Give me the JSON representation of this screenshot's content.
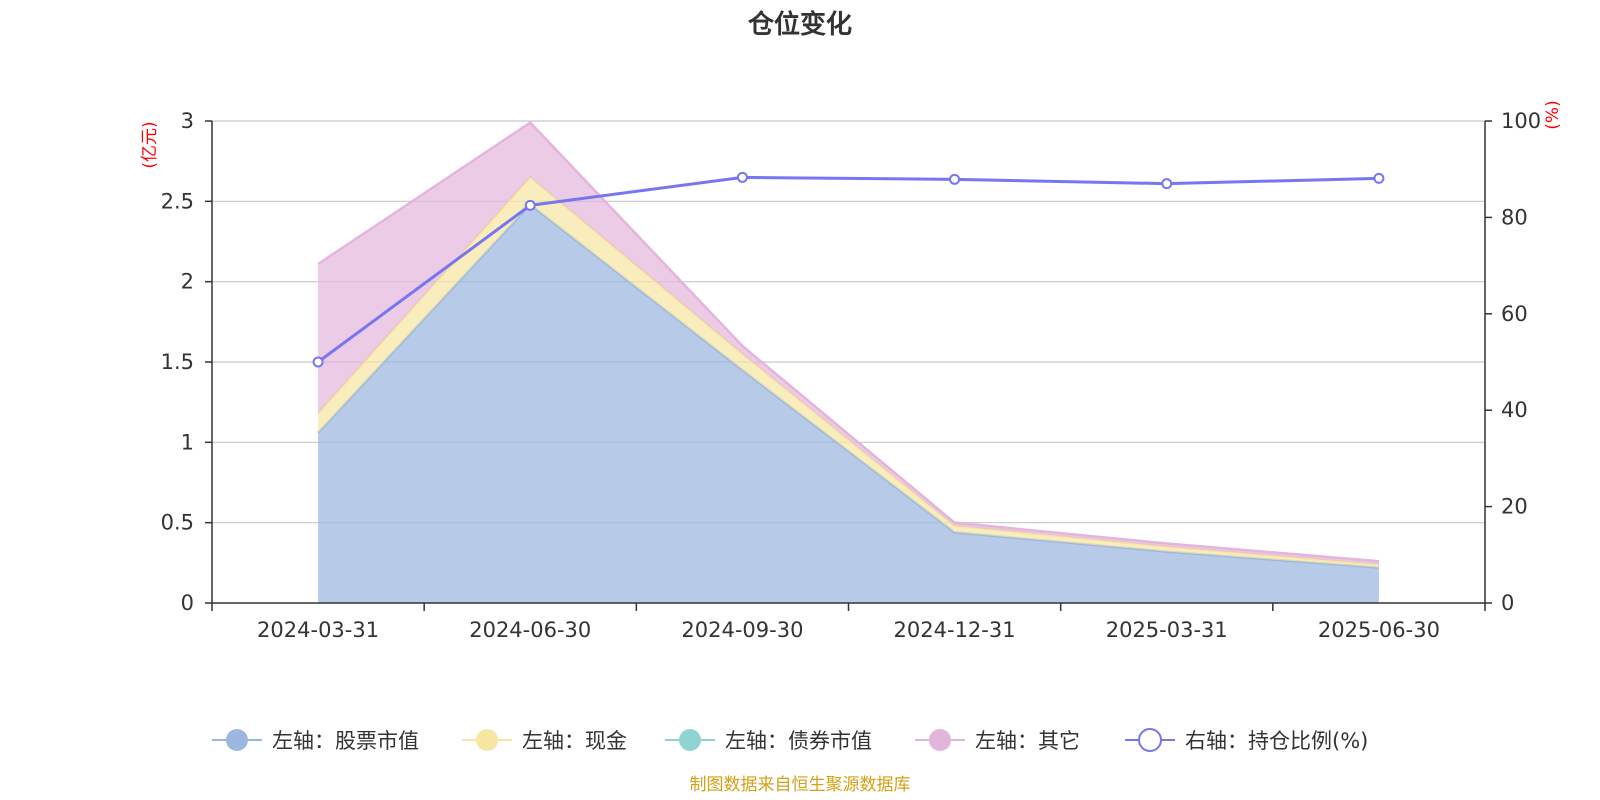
{
  "title": "仓位变化",
  "source": "制图数据来自恒生聚源数据库",
  "left_axis_unit": "(亿元)",
  "right_axis_unit": "(%)",
  "colors": {
    "stock": "#9bb7e0",
    "cash": "#f7e6a1",
    "bond": "#8fd3d2",
    "other": "#e4b5dc",
    "ratio": "#7676f0",
    "source": "#d4a017"
  },
  "legend": [
    {
      "key": "stock",
      "label": "左轴：股票市值"
    },
    {
      "key": "cash",
      "label": "左轴：现金"
    },
    {
      "key": "bond",
      "label": "左轴：债券市值"
    },
    {
      "key": "other",
      "label": "左轴：其它"
    },
    {
      "key": "ratio",
      "label": "右轴：持仓比例(%)"
    }
  ],
  "chart_data": {
    "type": "area",
    "stacked": true,
    "categories": [
      "2024-03-31",
      "2024-06-30",
      "2024-09-30",
      "2024-12-31",
      "2025-03-31",
      "2025-06-30"
    ],
    "left_axis": {
      "min": 0,
      "max": 3,
      "ticks": [
        "0",
        "0.5",
        "1",
        "1.5",
        "2",
        "2.5",
        "3"
      ],
      "tick_values": [
        0,
        0.5,
        1,
        1.5,
        2,
        2.5,
        3
      ]
    },
    "right_axis": {
      "min": 0,
      "max": 100,
      "ticks": [
        "0",
        "20",
        "40",
        "60",
        "80",
        "100"
      ],
      "tick_values": [
        0,
        20,
        40,
        60,
        80,
        100
      ]
    },
    "series": [
      {
        "key": "stock",
        "name": "左轴：股票市值",
        "axis": "left",
        "values": [
          1.06,
          2.48,
          1.45,
          0.44,
          0.32,
          0.22
        ]
      },
      {
        "key": "cash",
        "name": "左轴：现金",
        "axis": "left",
        "values": [
          0.12,
          0.17,
          0.1,
          0.04,
          0.03,
          0.02
        ]
      },
      {
        "key": "bond",
        "name": "左轴：债券市值",
        "axis": "left",
        "values": [
          0,
          0,
          0,
          0,
          0,
          0
        ]
      },
      {
        "key": "other",
        "name": "左轴：其它",
        "axis": "left",
        "values": [
          0.93,
          0.34,
          0.05,
          0.02,
          0.02,
          0.02
        ]
      },
      {
        "key": "ratio",
        "name": "右轴：持仓比例(%)",
        "axis": "right",
        "type": "line",
        "values": [
          50.0,
          82.5,
          88.3,
          87.9,
          87.0,
          88.1
        ]
      }
    ],
    "grid": true,
    "legend_position": "bottom"
  }
}
